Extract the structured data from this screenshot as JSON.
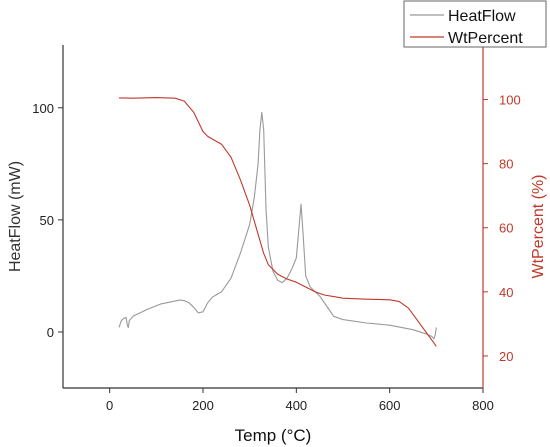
{
  "chart_data": {
    "type": "line",
    "title": "",
    "xlabel": "Temp (°C)",
    "xlim": [
      -100,
      800
    ],
    "x_ticks": [
      0,
      200,
      400,
      600,
      800
    ],
    "left_axis": {
      "label": "HeatFlow (mW)",
      "ylim": [
        -25,
        128
      ],
      "ticks": [
        0,
        50,
        100
      ],
      "color": "#555555"
    },
    "right_axis": {
      "label": "WtPercent (%)",
      "ylim": [
        10,
        117
      ],
      "ticks": [
        20,
        40,
        60,
        80,
        100
      ],
      "color": "#c0392b"
    },
    "legend": {
      "placement": "top-right",
      "entries": [
        "HeatFlow",
        "WtPercent"
      ]
    },
    "series": [
      {
        "name": "HeatFlow",
        "axis": "left",
        "color": "#999999",
        "points": [
          [
            20,
            2
          ],
          [
            25,
            5
          ],
          [
            30,
            6
          ],
          [
            35,
            6.5
          ],
          [
            38,
            3
          ],
          [
            40,
            2
          ],
          [
            42,
            5
          ],
          [
            50,
            7
          ],
          [
            80,
            10
          ],
          [
            110,
            12.5
          ],
          [
            150,
            14.2
          ],
          [
            160,
            14
          ],
          [
            170,
            13
          ],
          [
            180,
            11
          ],
          [
            190,
            8.5
          ],
          [
            200,
            9
          ],
          [
            210,
            13
          ],
          [
            220,
            15.5
          ],
          [
            240,
            18
          ],
          [
            260,
            24
          ],
          [
            280,
            35
          ],
          [
            300,
            48
          ],
          [
            310,
            60
          ],
          [
            318,
            75
          ],
          [
            322,
            90
          ],
          [
            326,
            98
          ],
          [
            330,
            90
          ],
          [
            335,
            55
          ],
          [
            340,
            38
          ],
          [
            350,
            27
          ],
          [
            360,
            23
          ],
          [
            370,
            22
          ],
          [
            380,
            24
          ],
          [
            390,
            28
          ],
          [
            400,
            33
          ],
          [
            405,
            45
          ],
          [
            410,
            57
          ],
          [
            414,
            45
          ],
          [
            420,
            25
          ],
          [
            430,
            20
          ],
          [
            450,
            16
          ],
          [
            470,
            10
          ],
          [
            480,
            7
          ],
          [
            500,
            5.5
          ],
          [
            550,
            4
          ],
          [
            600,
            3
          ],
          [
            650,
            1
          ],
          [
            680,
            -1
          ],
          [
            690,
            -2
          ],
          [
            695,
            -3
          ],
          [
            698,
            -1
          ],
          [
            700,
            2
          ]
        ]
      },
      {
        "name": "WtPercent",
        "axis": "right",
        "color": "#c0392b",
        "points": [
          [
            20,
            100.5
          ],
          [
            50,
            100.4
          ],
          [
            100,
            100.6
          ],
          [
            140,
            100.4
          ],
          [
            160,
            99.5
          ],
          [
            180,
            96
          ],
          [
            200,
            90
          ],
          [
            210,
            88.5
          ],
          [
            240,
            86
          ],
          [
            260,
            82
          ],
          [
            280,
            75
          ],
          [
            300,
            67
          ],
          [
            320,
            57
          ],
          [
            330,
            52
          ],
          [
            340,
            48.5
          ],
          [
            360,
            45.5
          ],
          [
            380,
            44
          ],
          [
            400,
            43
          ],
          [
            420,
            41.5
          ],
          [
            440,
            40
          ],
          [
            460,
            39
          ],
          [
            480,
            38.5
          ],
          [
            500,
            38
          ],
          [
            550,
            37.7
          ],
          [
            600,
            37.5
          ],
          [
            620,
            37
          ],
          [
            640,
            35
          ],
          [
            660,
            31
          ],
          [
            680,
            27
          ],
          [
            690,
            25
          ],
          [
            695,
            24
          ],
          [
            700,
            23
          ]
        ]
      }
    ]
  }
}
